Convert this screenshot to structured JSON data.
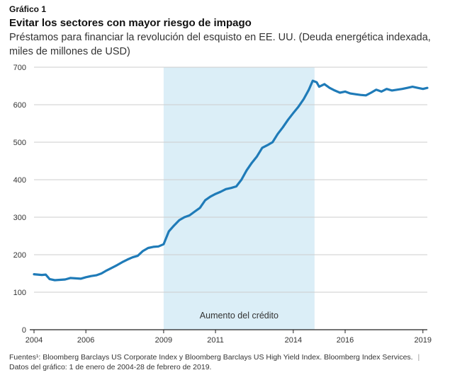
{
  "header": {
    "figure_label": "Gráfico 1",
    "title": "Evitar los sectores con mayor riesgo de impago",
    "subtitle": "Préstamos para financiar la revolución del esquisto en EE. UU. (Deuda energética indexada, miles de millones de USD)"
  },
  "footer": {
    "sources": "Fuentes¹: Bloomberg Barclays US Corporate Index y Bloomberg Barclays US High Yield Index. Bloomberg Index Services.",
    "separator": "|",
    "dates": "Datos del gráfico: 1 de enero de 2004-28 de febrero de 2019."
  },
  "colors": {
    "line": "#1f7bb8",
    "band": "#dbeef7",
    "axis": "#222222",
    "grid": "#cccccc"
  },
  "chart_data": {
    "type": "line",
    "title": "Evitar los sectores con mayor riesgo de impago",
    "xlabel": "",
    "ylabel": "miles de millones de USD",
    "xlim": [
      2004.0,
      2019.17
    ],
    "ylim": [
      0,
      700
    ],
    "y_ticks": [
      0,
      100,
      200,
      300,
      400,
      500,
      600,
      700
    ],
    "x_tick_labels": [
      {
        "value": 2004.0,
        "label": "2004"
      },
      {
        "value": 2006.0,
        "label": "2006"
      },
      {
        "value": 2009.0,
        "label": "2009"
      },
      {
        "value": 2011.0,
        "label": "2011"
      },
      {
        "value": 2014.0,
        "label": "2014"
      },
      {
        "value": 2016.0,
        "label": "2016"
      },
      {
        "value": 2019.0,
        "label": "2019"
      }
    ],
    "grid": true,
    "shaded_region": {
      "start": 2009.0,
      "end": 2014.82,
      "label": "Aumento del crédito"
    },
    "series": [
      {
        "name": "Deuda energética indexada",
        "x": [
          2004.0,
          2004.3,
          2004.45,
          2004.6,
          2004.8,
          2005.0,
          2005.2,
          2005.4,
          2005.6,
          2005.8,
          2006.0,
          2006.2,
          2006.4,
          2006.6,
          2006.8,
          2007.0,
          2007.2,
          2007.4,
          2007.6,
          2007.8,
          2008.0,
          2008.2,
          2008.4,
          2008.6,
          2008.8,
          2009.0,
          2009.2,
          2009.4,
          2009.6,
          2009.8,
          2010.0,
          2010.2,
          2010.4,
          2010.6,
          2010.8,
          2011.0,
          2011.2,
          2011.4,
          2011.6,
          2011.8,
          2012.0,
          2012.2,
          2012.4,
          2012.6,
          2012.8,
          2013.0,
          2013.2,
          2013.4,
          2013.6,
          2013.8,
          2014.0,
          2014.2,
          2014.4,
          2014.6,
          2014.75,
          2014.9,
          2015.0,
          2015.2,
          2015.4,
          2015.6,
          2015.8,
          2016.0,
          2016.2,
          2016.4,
          2016.6,
          2016.8,
          2017.0,
          2017.2,
          2017.4,
          2017.6,
          2017.8,
          2018.0,
          2018.2,
          2018.4,
          2018.6,
          2018.8,
          2019.0,
          2019.17
        ],
        "values": [
          148,
          146,
          147,
          135,
          132,
          133,
          134,
          138,
          137,
          136,
          140,
          143,
          145,
          150,
          158,
          165,
          172,
          180,
          187,
          193,
          197,
          210,
          218,
          221,
          222,
          228,
          262,
          278,
          292,
          300,
          305,
          315,
          325,
          345,
          355,
          362,
          368,
          375,
          378,
          382,
          400,
          425,
          445,
          462,
          485,
          492,
          500,
          522,
          540,
          560,
          578,
          595,
          615,
          640,
          664,
          660,
          648,
          655,
          645,
          638,
          632,
          635,
          630,
          628,
          626,
          625,
          632,
          640,
          635,
          642,
          638,
          640,
          642,
          645,
          648,
          645,
          642,
          645
        ]
      }
    ]
  }
}
